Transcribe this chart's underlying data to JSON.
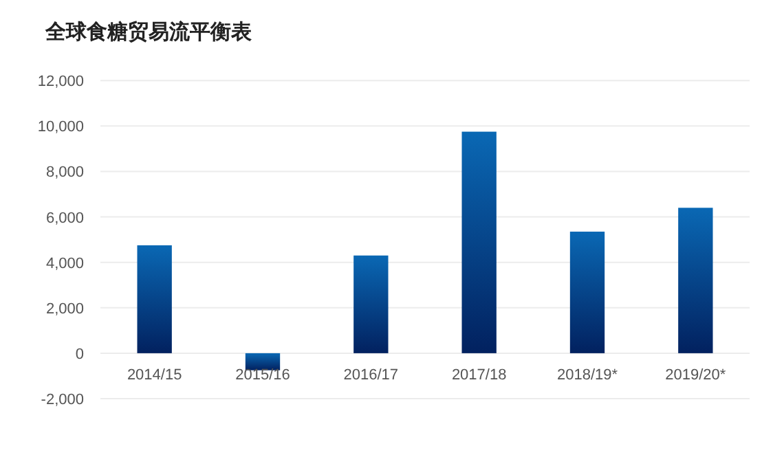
{
  "chart_data": {
    "type": "bar",
    "title": "全球食糖贸易流平衡表",
    "categories": [
      "2014/15",
      "2015/16",
      "2016/17",
      "2017/18",
      "2018/19*",
      "2019/20*"
    ],
    "values": [
      4750,
      -750,
      4300,
      9750,
      5350,
      6400
    ],
    "color": "#0a68b4",
    "ylim": [
      -2000,
      12000
    ],
    "yticks": [
      {
        "value": -2000,
        "label": "-2,000"
      },
      0,
      {
        "value": 2000,
        "label": "2,000"
      },
      {
        "value": 4000,
        "label": "4,000"
      },
      {
        "value": 6000,
        "label": "6,000"
      },
      {
        "value": 8000,
        "label": "8,000"
      },
      {
        "value": 10000,
        "label": "10,000"
      },
      {
        "value": 12000,
        "label": "12,000"
      }
    ],
    "grid": "y"
  }
}
